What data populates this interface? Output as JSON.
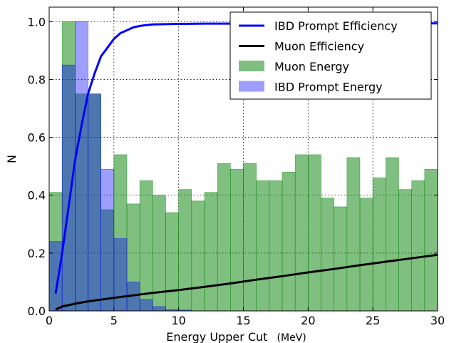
{
  "chart_data": {
    "type": "bar",
    "xlabel": "Energy Upper Cut",
    "xlabel_unit": "(MeV)",
    "ylabel": "N",
    "xlim": [
      0,
      30
    ],
    "ylim": [
      0,
      1.05
    ],
    "x_ticks": [
      0,
      5,
      10,
      15,
      20,
      25,
      30
    ],
    "y_ticks": [
      0.0,
      0.2,
      0.4,
      0.6,
      0.8,
      1.0
    ],
    "x_tick_labels": [
      "0",
      "5",
      "10",
      "15",
      "20",
      "25",
      "30"
    ],
    "y_tick_labels": [
      "0.0",
      "0.2",
      "0.4",
      "0.6",
      "0.8",
      "1.0"
    ],
    "grid": true,
    "legend_position": "top-right",
    "bin_width": 1,
    "histograms": [
      {
        "name": "Muon Energy",
        "color": "#008000",
        "alpha": 0.5,
        "bin_starts": [
          0,
          1,
          2,
          3,
          4,
          5,
          6,
          7,
          8,
          9,
          10,
          11,
          12,
          13,
          14,
          15,
          16,
          17,
          18,
          19,
          20,
          21,
          22,
          23,
          24,
          25,
          26,
          27,
          28,
          29
        ],
        "values": [
          0.41,
          1.0,
          0.75,
          0.75,
          0.35,
          0.54,
          0.37,
          0.45,
          0.4,
          0.34,
          0.42,
          0.38,
          0.41,
          0.51,
          0.49,
          0.51,
          0.45,
          0.45,
          0.48,
          0.54,
          0.54,
          0.39,
          0.36,
          0.53,
          0.39,
          0.46,
          0.53,
          0.42,
          0.45,
          0.49
        ]
      },
      {
        "name": "IBD Prompt Energy",
        "color": "#0000ff",
        "alpha": 0.38,
        "bin_starts": [
          0,
          1,
          2,
          3,
          4,
          5,
          6,
          7,
          8,
          9,
          10,
          11,
          12,
          13,
          14,
          15,
          16,
          17,
          18,
          19,
          20,
          21,
          22,
          23,
          24,
          25,
          26,
          27,
          28,
          29
        ],
        "values": [
          0.24,
          0.85,
          1.0,
          0.75,
          0.49,
          0.25,
          0.1,
          0.04,
          0.015,
          0.005,
          0.003,
          0,
          0,
          0,
          0,
          0,
          0,
          0,
          0,
          0,
          0,
          0,
          0,
          0,
          0,
          0,
          0,
          0,
          0,
          0
        ]
      }
    ],
    "lines": [
      {
        "name": "IBD Prompt Efficiency",
        "color": "#0000ff",
        "x": [
          0.5,
          1,
          1.5,
          2,
          2.5,
          3,
          3.5,
          4,
          4.5,
          5,
          5.5,
          6,
          6.5,
          7,
          7.5,
          8,
          9,
          10,
          12,
          15,
          20,
          25,
          30
        ],
        "y": [
          0.06,
          0.2,
          0.36,
          0.52,
          0.64,
          0.75,
          0.82,
          0.88,
          0.91,
          0.94,
          0.96,
          0.97,
          0.98,
          0.985,
          0.988,
          0.99,
          0.991,
          0.992,
          0.993,
          0.993,
          0.994,
          0.994,
          0.994
        ]
      },
      {
        "name": "Muon Efficiency",
        "color": "#000000",
        "x": [
          0.5,
          1,
          2,
          3,
          4,
          5,
          6,
          8,
          10,
          12,
          14,
          16,
          18,
          20,
          22,
          24,
          26,
          28,
          30
        ],
        "y": [
          0.005,
          0.015,
          0.025,
          0.033,
          0.039,
          0.045,
          0.051,
          0.062,
          0.072,
          0.083,
          0.095,
          0.108,
          0.12,
          0.133,
          0.145,
          0.158,
          0.17,
          0.182,
          0.194
        ]
      }
    ],
    "legend_order": [
      "IBD Prompt Efficiency",
      "Muon Efficiency",
      "Muon Energy",
      "IBD Prompt Energy"
    ]
  }
}
